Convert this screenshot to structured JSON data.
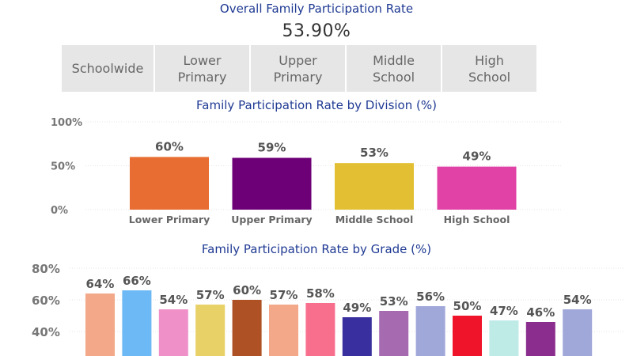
{
  "header": {
    "title": "Overall Family Participation Rate",
    "overall_value": "53.90%"
  },
  "tabs": [
    {
      "label": "Schoolwide"
    },
    {
      "label": "Lower\nPrimary"
    },
    {
      "label": "Upper\nPrimary"
    },
    {
      "label": "Middle\nSchool"
    },
    {
      "label": "High\nSchool"
    }
  ],
  "colors": {
    "title": "#1f3a93",
    "tab_bg": "#e6e6e6",
    "tab_text": "#666666"
  },
  "chart_data": [
    {
      "type": "bar",
      "title": "Family Participation Rate by Division (%)",
      "categories": [
        "Lower Primary",
        "Upper Primary",
        "Middle School",
        "High School"
      ],
      "values": [
        60,
        59,
        53,
        49
      ],
      "value_labels": [
        "60%",
        "59%",
        "53%",
        "49%"
      ],
      "colors": [
        "#e86d33",
        "#6d0077",
        "#e3bf33",
        "#e043a5"
      ],
      "yticks": [
        "0%",
        "50%",
        "100%"
      ],
      "ylim": [
        0,
        100
      ],
      "grid": true
    },
    {
      "type": "bar",
      "title": "Family Participation Rate by Grade (%)",
      "values": [
        64,
        66,
        54,
        57,
        60,
        57,
        58,
        49,
        53,
        56,
        50,
        47,
        46,
        54
      ],
      "value_labels": [
        "64%",
        "66%",
        "54%",
        "57%",
        "60%",
        "57%",
        "58%",
        "49%",
        "53%",
        "56%",
        "50%",
        "47%",
        "46%",
        "54%"
      ],
      "colors": [
        "#f2a889",
        "#6db9f5",
        "#ef91c8",
        "#e8d166",
        "#ae5225",
        "#f2a889",
        "#f86f8e",
        "#3a2f9e",
        "#a66ab0",
        "#a0a7d9",
        "#ef1429",
        "#bfebe7",
        "#8a2d8f",
        "#a0a7d9"
      ],
      "yticks": [
        "40%",
        "60%",
        "80%"
      ],
      "ylim": [
        30,
        80
      ],
      "grid": true
    }
  ]
}
